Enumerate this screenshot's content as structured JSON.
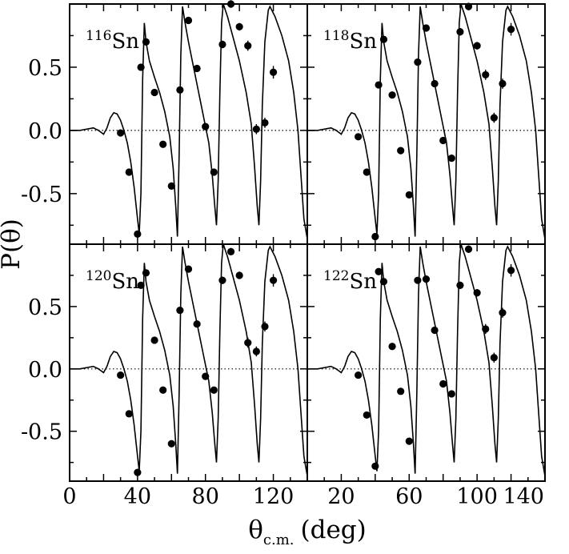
{
  "figure": {
    "ylabel": "P(θ)",
    "xlabel_main": "θ",
    "xlabel_sub": "c.m.",
    "xlabel_unit": "(deg)",
    "y_ticks": [
      "0.5",
      "0.0",
      "-0.5"
    ],
    "x_ticks_left": [
      "0",
      "40",
      "80",
      "120"
    ],
    "x_ticks_right": [
      "20",
      "60",
      "100",
      "140"
    ]
  },
  "colors": {
    "line": "#000000",
    "marker": "#000000",
    "background": "#ffffff"
  },
  "chart_data": [
    {
      "type": "scatter",
      "panel": "top-left",
      "label_mass": "116",
      "label_element": "Sn",
      "xlim": [
        0,
        140
      ],
      "ylim": [
        -0.9,
        1.0
      ],
      "points": [
        [
          30,
          -0.02
        ],
        [
          35,
          -0.33
        ],
        [
          40,
          -0.82
        ],
        [
          42,
          0.5
        ],
        [
          45,
          0.7
        ],
        [
          50,
          0.3
        ],
        [
          55,
          -0.11
        ],
        [
          60,
          -0.44
        ],
        [
          65,
          0.32
        ],
        [
          70,
          0.87
        ],
        [
          75,
          0.49
        ],
        [
          80,
          0.03
        ],
        [
          85,
          -0.33
        ],
        [
          90,
          0.68
        ],
        [
          95,
          1.0
        ],
        [
          100,
          0.82
        ],
        [
          105,
          0.67
        ],
        [
          110,
          0.01
        ],
        [
          115,
          0.06
        ],
        [
          120,
          0.46
        ]
      ],
      "errors": [
        0.02,
        0.02,
        0.02,
        0.02,
        0.02,
        0.02,
        0.02,
        0.02,
        0.02,
        0.02,
        0.02,
        0.02,
        0.02,
        0.03,
        0.03,
        0.03,
        0.04,
        0.04,
        0.04,
        0.05
      ]
    },
    {
      "type": "scatter",
      "panel": "top-right",
      "label_mass": "118",
      "label_element": "Sn",
      "xlim": [
        0,
        140
      ],
      "ylim": [
        -0.9,
        1.0
      ],
      "points": [
        [
          30,
          -0.05
        ],
        [
          35,
          -0.33
        ],
        [
          40,
          -0.84
        ],
        [
          42,
          0.36
        ],
        [
          45,
          0.72
        ],
        [
          50,
          0.28
        ],
        [
          55,
          -0.16
        ],
        [
          60,
          -0.51
        ],
        [
          65,
          0.54
        ],
        [
          70,
          0.81
        ],
        [
          75,
          0.37
        ],
        [
          80,
          -0.08
        ],
        [
          85,
          -0.22
        ],
        [
          90,
          0.78
        ],
        [
          95,
          0.98
        ],
        [
          100,
          0.67
        ],
        [
          105,
          0.44
        ],
        [
          110,
          0.1
        ],
        [
          115,
          0.37
        ],
        [
          120,
          0.8
        ]
      ],
      "errors": [
        0.02,
        0.02,
        0.02,
        0.02,
        0.02,
        0.02,
        0.02,
        0.02,
        0.02,
        0.02,
        0.02,
        0.02,
        0.02,
        0.03,
        0.03,
        0.03,
        0.04,
        0.04,
        0.04,
        0.05
      ]
    },
    {
      "type": "scatter",
      "panel": "bottom-left",
      "label_mass": "120",
      "label_element": "Sn",
      "xlim": [
        0,
        140
      ],
      "ylim": [
        -0.9,
        1.0
      ],
      "points": [
        [
          30,
          -0.05
        ],
        [
          35,
          -0.36
        ],
        [
          40,
          -0.83
        ],
        [
          42,
          0.67
        ],
        [
          45,
          0.77
        ],
        [
          50,
          0.23
        ],
        [
          55,
          -0.17
        ],
        [
          60,
          -0.6
        ],
        [
          65,
          0.47
        ],
        [
          70,
          0.8
        ],
        [
          75,
          0.36
        ],
        [
          80,
          -0.06
        ],
        [
          85,
          -0.17
        ],
        [
          90,
          0.71
        ],
        [
          95,
          0.94
        ],
        [
          100,
          0.75
        ],
        [
          105,
          0.21
        ],
        [
          110,
          0.14
        ],
        [
          115,
          0.34
        ],
        [
          120,
          0.71
        ]
      ],
      "errors": [
        0.02,
        0.02,
        0.02,
        0.02,
        0.02,
        0.02,
        0.02,
        0.02,
        0.02,
        0.02,
        0.02,
        0.02,
        0.02,
        0.03,
        0.03,
        0.03,
        0.04,
        0.04,
        0.04,
        0.05
      ]
    },
    {
      "type": "scatter",
      "panel": "bottom-right",
      "label_mass": "122",
      "label_element": "Sn",
      "xlim": [
        0,
        140
      ],
      "ylim": [
        -0.9,
        1.0
      ],
      "points": [
        [
          30,
          -0.05
        ],
        [
          35,
          -0.37
        ],
        [
          40,
          -0.78
        ],
        [
          42,
          0.78
        ],
        [
          45,
          0.7
        ],
        [
          50,
          0.18
        ],
        [
          55,
          -0.18
        ],
        [
          60,
          -0.58
        ],
        [
          65,
          0.71
        ],
        [
          70,
          0.72
        ],
        [
          75,
          0.31
        ],
        [
          80,
          -0.12
        ],
        [
          85,
          -0.2
        ],
        [
          90,
          0.67
        ],
        [
          95,
          0.96
        ],
        [
          100,
          0.61
        ],
        [
          105,
          0.32
        ],
        [
          110,
          0.09
        ],
        [
          115,
          0.45
        ],
        [
          120,
          0.79
        ]
      ],
      "errors": [
        0.02,
        0.02,
        0.02,
        0.02,
        0.02,
        0.02,
        0.02,
        0.02,
        0.02,
        0.02,
        0.02,
        0.02,
        0.02,
        0.03,
        0.03,
        0.03,
        0.04,
        0.04,
        0.04,
        0.05
      ]
    }
  ]
}
